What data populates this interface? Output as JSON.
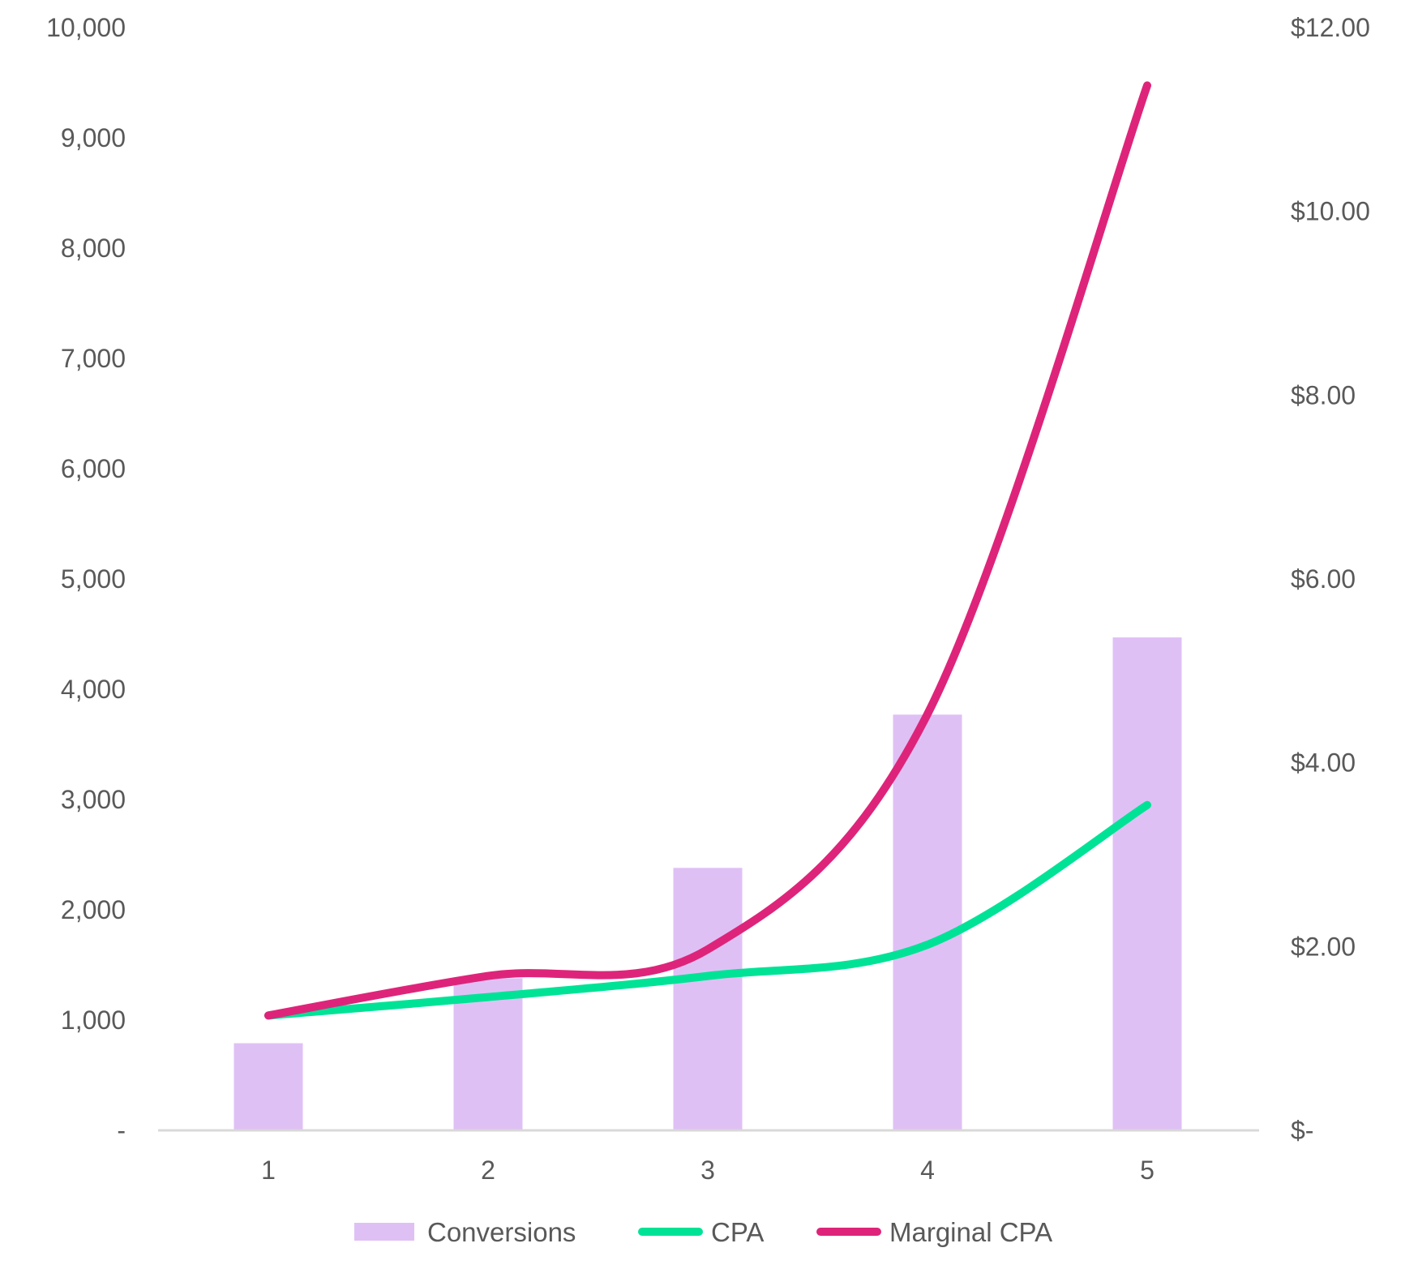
{
  "chart_data": {
    "type": "bar+line",
    "categories": [
      "1",
      "2",
      "3",
      "4",
      "5"
    ],
    "y_left": {
      "range": [
        0,
        10000
      ],
      "ticks": [
        "-",
        "1,000",
        "2,000",
        "3,000",
        "4,000",
        "5,000",
        "6,000",
        "7,000",
        "8,000",
        "9,000",
        "10,000"
      ]
    },
    "y_right": {
      "range": [
        0,
        12
      ],
      "ticks": [
        "$-",
        "$2.00",
        "$4.00",
        "$6.00",
        "$8.00",
        "$10.00",
        "$12.00"
      ]
    },
    "series": [
      {
        "name": "Conversions",
        "type": "bar",
        "axis": "left",
        "color": "#dfc0f5",
        "values": [
          790,
          1380,
          2380,
          3770,
          4470
        ]
      },
      {
        "name": "CPA",
        "type": "line",
        "axis": "right",
        "smooth": true,
        "color": "#00e396",
        "values": [
          1.25,
          1.45,
          1.68,
          2.02,
          3.54
        ]
      },
      {
        "name": "Marginal CPA",
        "type": "line",
        "axis": "right",
        "smooth": true,
        "color": "#de247a",
        "values": [
          1.25,
          1.68,
          1.97,
          4.53,
          11.37
        ]
      }
    ],
    "grid": false,
    "legend": "bottom"
  }
}
